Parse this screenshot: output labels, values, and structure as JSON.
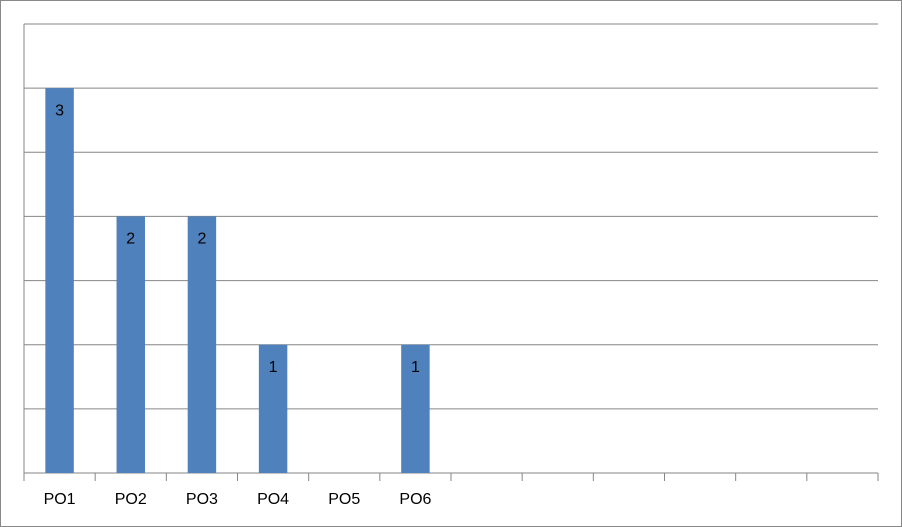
{
  "chart_data": {
    "type": "bar",
    "categories": [
      "PO1",
      "PO2",
      "PO3",
      "PO4",
      "PO5",
      "PO6",
      null,
      null,
      null,
      null,
      null,
      null
    ],
    "values": [
      3,
      2,
      2,
      1,
      null,
      1,
      null,
      null,
      null,
      null,
      null,
      null
    ],
    "color": "#4f81bd",
    "ylim": [
      0,
      3.5
    ],
    "yticks": [
      0,
      0.5,
      1,
      1.5,
      2,
      2.5,
      3,
      3.5
    ],
    "grid": true
  }
}
